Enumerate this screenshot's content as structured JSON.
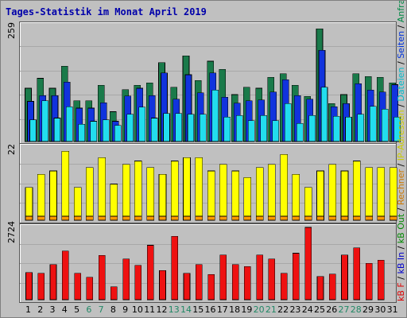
{
  "title": "Tages-Statistik im Monat April 2019",
  "legend": [
    {
      "text": "kB F",
      "color": "#dd0000"
    },
    {
      "text": " / ",
      "color": "#000000"
    },
    {
      "text": "kB In",
      "color": "#0000cc"
    },
    {
      "text": " / ",
      "color": "#000000"
    },
    {
      "text": "kB Out",
      "color": "#008800"
    },
    {
      "text": " / ",
      "color": "#000000"
    },
    {
      "text": "Rechner",
      "color": "#cc7700"
    },
    {
      "text": " / ",
      "color": "#000000"
    },
    {
      "text": "IP-Adressen",
      "color": "#cccc00"
    },
    {
      "text": " / ",
      "color": "#000000"
    },
    {
      "text": "Dateien",
      "color": "#00bbcc"
    },
    {
      "text": " / ",
      "color": "#000000"
    },
    {
      "text": "Seiten",
      "color": "#0033dd"
    },
    {
      "text": " / ",
      "color": "#000000"
    },
    {
      "text": "Anfragen",
      "color": "#008844"
    }
  ],
  "colors": {
    "anfragen": "#1a7a4a",
    "seiten": "#1133dd",
    "dateien": "#22ddee",
    "besuche": "#ffff00",
    "rechner": "#ff9900",
    "kbf": "#ee1111",
    "weekend_label": "#228866",
    "normal_label": "#000000"
  },
  "chart_data": [
    {
      "type": "bar",
      "name": "hits-pages-files",
      "max_label": "259",
      "ylim": [
        0,
        259
      ],
      "categories": [
        "1",
        "2",
        "3",
        "4",
        "5",
        "6",
        "7",
        "8",
        "9",
        "10",
        "11",
        "12",
        "13",
        "14",
        "15",
        "16",
        "17",
        "18",
        "19",
        "20",
        "21",
        "22",
        "23",
        "24",
        "25",
        "26",
        "27",
        "28",
        "29",
        "30",
        "31"
      ],
      "series": [
        {
          "name": "Anfragen",
          "color": "#1a7a4a",
          "values": [
            118,
            140,
            118,
            167,
            90,
            90,
            125,
            66,
            115,
            125,
            130,
            175,
            120,
            190,
            135,
            178,
            160,
            104,
            120,
            118,
            142,
            150,
            125,
            100,
            250,
            84,
            104,
            150,
            144,
            142,
            130
          ]
        },
        {
          "name": "Seiten",
          "color": "#1133dd",
          "values": [
            89,
            102,
            102,
            132,
            74,
            74,
            86,
            45,
            101,
            118,
            102,
            152,
            94,
            148,
            108,
            152,
            98,
            85,
            90,
            92,
            110,
            137,
            102,
            94,
            202,
            77,
            84,
            128,
            114,
            110,
            126
          ]
        },
        {
          "name": "Dateien",
          "color": "#22ddee",
          "values": [
            48,
            90,
            52,
            77,
            38,
            45,
            48,
            36,
            60,
            76,
            52,
            62,
            62,
            60,
            60,
            114,
            54,
            58,
            46,
            58,
            46,
            84,
            40,
            58,
            120,
            56,
            54,
            60,
            78,
            72,
            54
          ]
        }
      ]
    },
    {
      "type": "bar",
      "name": "visits-hosts",
      "max_label": "22",
      "ylim": [
        0,
        22
      ],
      "categories": [
        "1",
        "2",
        "3",
        "4",
        "5",
        "6",
        "7",
        "8",
        "9",
        "10",
        "11",
        "12",
        "13",
        "14",
        "15",
        "16",
        "17",
        "18",
        "19",
        "20",
        "21",
        "22",
        "23",
        "24",
        "25",
        "26",
        "27",
        "28",
        "29",
        "30",
        "31"
      ],
      "series": [
        {
          "name": "IP-Adressen",
          "color": "#ffff00",
          "values": [
            10,
            14,
            15,
            21,
            10,
            16,
            19,
            11,
            17,
            18,
            16,
            14,
            18,
            19,
            19,
            15,
            17,
            15,
            13,
            16,
            17,
            20,
            14,
            10,
            15,
            17,
            15,
            18,
            16,
            16,
            16
          ]
        },
        {
          "name": "Rechner",
          "color": "#ff9900",
          "values": [
            1,
            1,
            1,
            1,
            1,
            1,
            1,
            1,
            1,
            1,
            1,
            1,
            1,
            1,
            1,
            1,
            1,
            1,
            1,
            1,
            1,
            1,
            1,
            1,
            1,
            1,
            1,
            1,
            1,
            1,
            1
          ]
        }
      ]
    },
    {
      "type": "bar",
      "name": "kbytes",
      "max_label": "2724",
      "ylim": [
        0,
        2724
      ],
      "categories": [
        "1",
        "2",
        "3",
        "4",
        "5",
        "6",
        "7",
        "8",
        "9",
        "10",
        "11",
        "12",
        "13",
        "14",
        "15",
        "16",
        "17",
        "18",
        "19",
        "20",
        "21",
        "22",
        "23",
        "24",
        "25",
        "26",
        "27",
        "28",
        "29",
        "30",
        "31"
      ],
      "series": [
        {
          "name": "kB F",
          "color": "#ee1111",
          "values": [
            1030,
            1000,
            1320,
            1830,
            1000,
            840,
            1670,
            490,
            1530,
            1300,
            2050,
            1100,
            2390,
            1000,
            1320,
            950,
            1680,
            1320,
            1250,
            1680,
            1530,
            1000,
            1750,
            2724,
            880,
            970,
            1680,
            1950,
            1370,
            1490,
            0
          ]
        }
      ]
    }
  ],
  "weekend_days": [
    6,
    7,
    13,
    14,
    20,
    21,
    27,
    28
  ]
}
